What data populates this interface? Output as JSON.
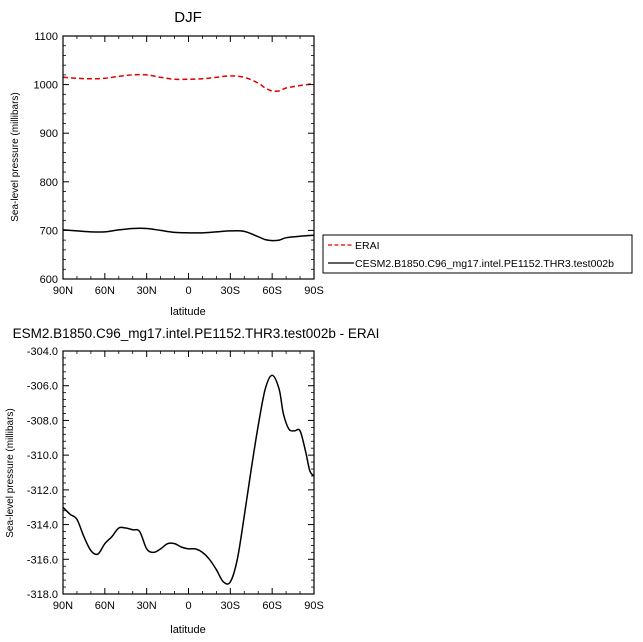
{
  "chart_data": [
    {
      "type": "line",
      "title": "DJF",
      "xlabel": "latitude",
      "ylabel": "Sea-level pressure (millibars)",
      "xticks": [
        "90N",
        "60N",
        "30N",
        "0",
        "30S",
        "60S",
        "90S"
      ],
      "xlim": [
        90,
        -90
      ],
      "ylim": [
        600,
        1100
      ],
      "yticks": [
        "600",
        "700",
        "800",
        "900",
        "1000",
        "1100"
      ],
      "series": [
        {
          "name": "ERAI",
          "color": "#e00000",
          "dash": "dashed",
          "x": [
            90,
            80,
            70,
            60,
            50,
            40,
            30,
            20,
            10,
            0,
            -10,
            -20,
            -30,
            -40,
            -50,
            -55,
            -60,
            -65,
            -70,
            -80,
            -90
          ],
          "y": [
            1015,
            1013,
            1012,
            1013,
            1017,
            1020,
            1020,
            1015,
            1011,
            1011,
            1012,
            1015,
            1018,
            1015,
            1003,
            993,
            987,
            987,
            993,
            998,
            1002
          ]
        },
        {
          "name": "CESM2.B1850.C96_mg17.intel.PE1152.THR3.test002b",
          "color": "#000000",
          "dash": "solid",
          "x": [
            90,
            80,
            70,
            60,
            50,
            40,
            30,
            20,
            10,
            0,
            -10,
            -20,
            -30,
            -40,
            -50,
            -55,
            -60,
            -65,
            -70,
            -80,
            -90
          ],
          "y": [
            701,
            699,
            697,
            697,
            701,
            704,
            704,
            700,
            696,
            695,
            695,
            697,
            699,
            698,
            687,
            681,
            679,
            680,
            685,
            688,
            690
          ]
        }
      ],
      "legend": "right"
    },
    {
      "type": "line",
      "title": "ESM2.B1850.C96_mg17.intel.PE1152.THR3.test002b - ERAI",
      "xlabel": "latitude",
      "ylabel": "Sea-level pressure (millibars)",
      "xticks": [
        "90N",
        "60N",
        "30N",
        "0",
        "30S",
        "60S",
        "90S"
      ],
      "xlim": [
        90,
        -90
      ],
      "ylim": [
        -318,
        -304
      ],
      "yticks": [
        "-318.0",
        "-316.0",
        "-314.0",
        "-312.0",
        "-310.0",
        "-308.0",
        "-306.0",
        "-304.0"
      ],
      "series": [
        {
          "color": "#000000",
          "x": [
            90,
            85,
            80,
            75,
            70,
            65,
            60,
            55,
            50,
            45,
            40,
            35,
            30,
            25,
            20,
            15,
            10,
            5,
            0,
            -5,
            -10,
            -15,
            -20,
            -25,
            -30,
            -35,
            -40,
            -45,
            -50,
            -55,
            -60,
            -65,
            -68,
            -72,
            -76,
            -80,
            -84,
            -87,
            -90
          ],
          "y": [
            -313.0,
            -313.4,
            -313.7,
            -314.7,
            -315.5,
            -315.7,
            -315.1,
            -314.7,
            -314.2,
            -314.2,
            -314.3,
            -314.4,
            -315.4,
            -315.6,
            -315.4,
            -315.1,
            -315.1,
            -315.3,
            -315.4,
            -315.4,
            -315.6,
            -316.0,
            -316.6,
            -317.3,
            -317.3,
            -316.0,
            -313.5,
            -310.8,
            -308.3,
            -306.2,
            -305.4,
            -306.2,
            -307.6,
            -308.5,
            -308.6,
            -308.6,
            -309.8,
            -310.9,
            -311.2
          ]
        }
      ]
    }
  ]
}
